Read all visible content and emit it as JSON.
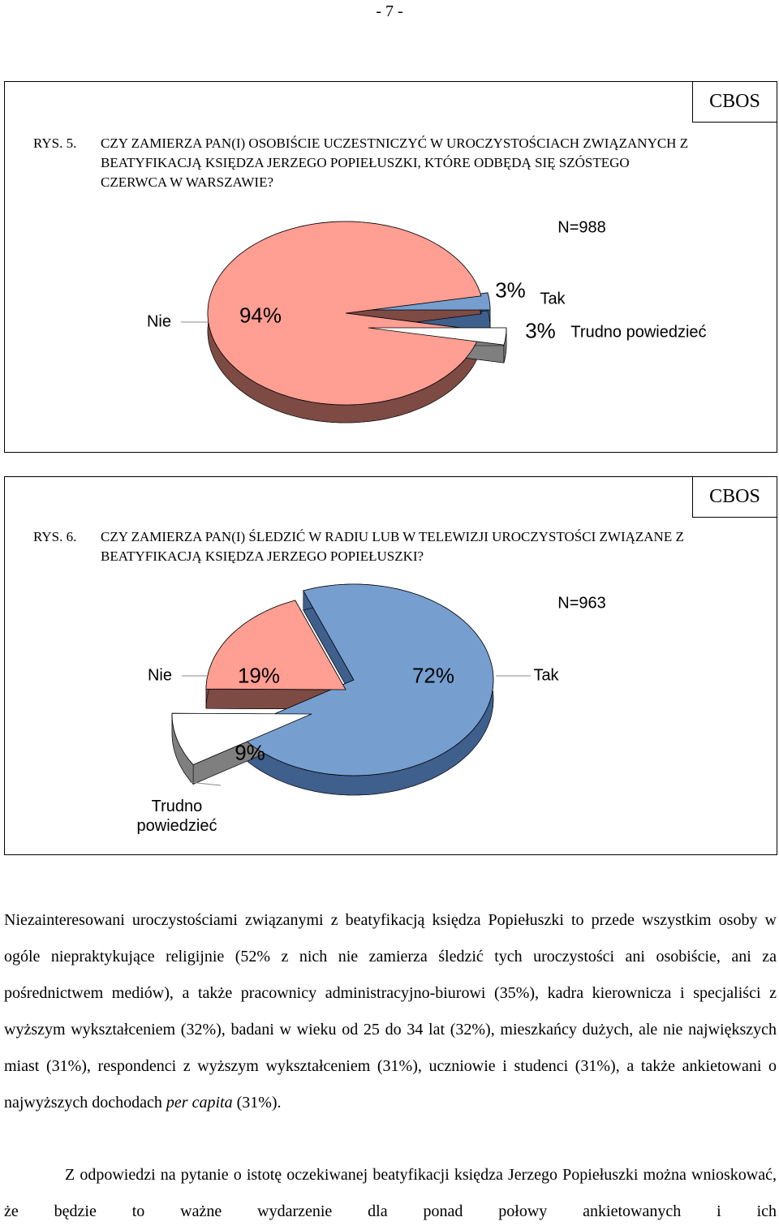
{
  "page_number": "- 7 -",
  "chart_data": [
    {
      "type": "pie",
      "figure": "RYS. 5.",
      "title": "CZY ZAMIERZA PAN(I) OSOBIŚCIE UCZESTNICZYĆ W UROCZYSTOŚCIACH ZWIĄZANYCH Z BEATYFIKACJĄ KSIĘDZA JERZEGO POPIEŁUSZKI, KTÓRE ODBĘDĄ SIĘ SZÓSTEGO CZERWCA W WARSZAWIE?",
      "source": "CBOS",
      "subtitle": "N=988",
      "categories": [
        "Tak",
        "Nie",
        "Trudno powiedzieć"
      ],
      "values": [
        3,
        94,
        3
      ],
      "value_labels": [
        "3%",
        "94%",
        "3%"
      ],
      "colors": [
        "#769fd0",
        "#ff9e93",
        "#ffffff"
      ]
    },
    {
      "type": "pie",
      "figure": "RYS. 6.",
      "title": "CZY ZAMIERZA PAN(I) ŚLEDZIĆ W RADIU LUB W TELEWIZJI UROCZYSTOŚCI ZWIĄZANE Z BEATYFIKACJĄ KSIĘDZA JERZEGO POPIEŁUSZKI?",
      "source": "CBOS",
      "subtitle": "N=963",
      "categories": [
        "Tak",
        "Nie",
        "Trudno powiedzieć"
      ],
      "values": [
        72,
        19,
        9
      ],
      "value_labels": [
        "72%",
        "19%",
        "9%"
      ],
      "colors": [
        "#769fd0",
        "#ff9e93",
        "#ffffff"
      ]
    }
  ],
  "paragraphs": [
    [
      "Niezainteresowani uroczystościami związanymi z beatyfikacją księdza Popiełuszki to przede wszystkim osoby w ogóle niepraktykujące religijnie (52% z nich nie zamierza śledzić tych uroczystości ani osobiście, ani za pośrednictwem mediów), a także pracownicy administracyjno-biurowi (35%), kadra kierownicza i specjaliści z wyższym wykształceniem (32%), badani w wieku od 25 do 34 lat (32%), mieszkańcy dużych, ale nie największych miast (31%), respondenci z wyższym wykształceniem (31%), uczniowie i studenci (31%), a także ankietowani o najwyższych dochodach ",
      "per capita",
      " (31%)."
    ],
    [
      "Z odpowiedzi na pytanie o istotę oczekiwanej beatyfikacji księdza Jerzego Popiełuszki można wnioskować, że będzie to ważne wydarzenie dla ponad połowy ankietowanych i ich"
    ]
  ]
}
